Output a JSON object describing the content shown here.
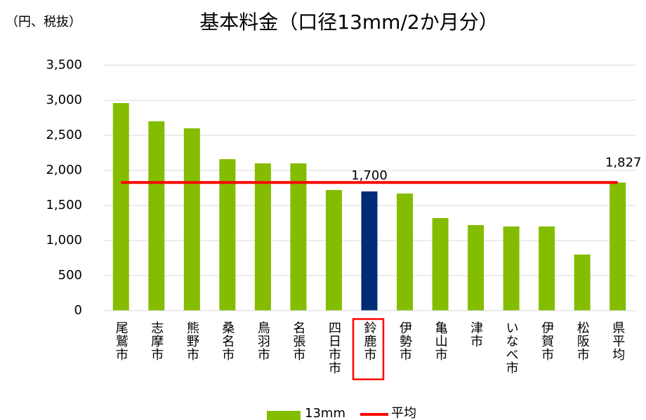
{
  "chart_data": {
    "type": "bar",
    "title": "基本料金（口径13mm/2か月分）",
    "y_label": "（円、税抜）",
    "categories": [
      "尾鷲市",
      "志摩市",
      "熊野市",
      "桑名市",
      "鳥羽市",
      "名張市",
      "四日市市",
      "鈴鹿市",
      "伊勢市",
      "亀山市",
      "津市",
      "いなべ市",
      "伊賀市",
      "松阪市",
      "県平均"
    ],
    "series": [
      {
        "name": "13mm",
        "type": "bar",
        "color": "#84bd00",
        "colors": [
          "#84bd00",
          "#84bd00",
          "#84bd00",
          "#84bd00",
          "#84bd00",
          "#84bd00",
          "#84bd00",
          "#002c77",
          "#84bd00",
          "#84bd00",
          "#84bd00",
          "#84bd00",
          "#84bd00",
          "#84bd00",
          "#84bd00"
        ],
        "values": [
          2960,
          2700,
          2600,
          2160,
          2100,
          2100,
          1720,
          1700,
          1670,
          1320,
          1220,
          1200,
          1200,
          800,
          1827
        ],
        "value_labels": [
          null,
          null,
          null,
          null,
          null,
          null,
          null,
          "1,700",
          null,
          null,
          null,
          null,
          null,
          null,
          null
        ]
      },
      {
        "name": "平均",
        "type": "line",
        "color": "#ff0000",
        "values": [
          1827,
          1827,
          1827,
          1827,
          1827,
          1827,
          1827,
          1827,
          1827,
          1827,
          1827,
          1827,
          1827,
          1827,
          1827
        ],
        "value_labels": [
          null,
          null,
          null,
          null,
          null,
          null,
          null,
          null,
          null,
          null,
          null,
          null,
          null,
          null,
          "1,827"
        ]
      }
    ],
    "ylim": [
      0,
      3500
    ],
    "yticks": [
      0,
      500,
      {
        "value": 1000,
        "label": "1,000"
      },
      {
        "value": 1500,
        "label": "1,500"
      },
      {
        "value": 2000,
        "label": "2,000"
      },
      {
        "value": 2500,
        "label": "2,500"
      },
      {
        "value": 3000,
        "label": "3,000"
      },
      {
        "value": 3500,
        "label": "3,500"
      }
    ],
    "grid": true,
    "legend": "bottom"
  }
}
